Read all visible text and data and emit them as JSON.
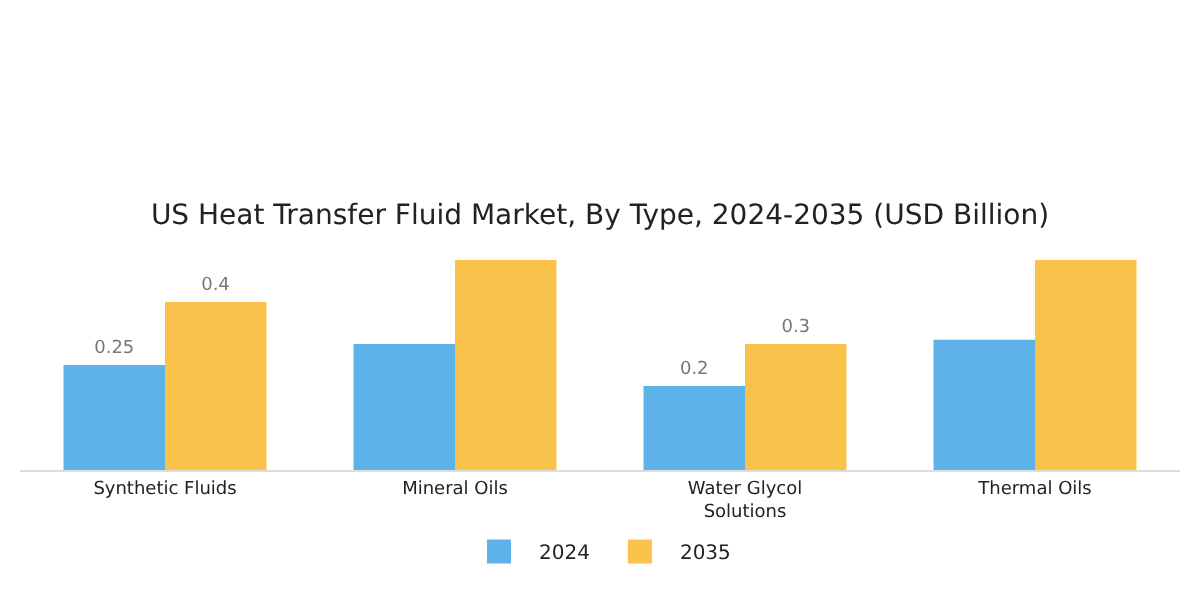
{
  "chart_data": {
    "type": "bar",
    "title": "US Heat Transfer Fluid Market, By Type, 2024-2035 (USD Billion)",
    "categories": [
      "Synthetic Fluids",
      "Mineral Oils",
      "Water Glycol Solutions",
      "Thermal Oils"
    ],
    "series": [
      {
        "name": "2024",
        "color": "#5db3e8",
        "values": [
          0.25,
          0.3,
          0.2,
          0.31
        ],
        "value_labels": [
          "0.25",
          null,
          "0.2",
          null
        ]
      },
      {
        "name": "2035",
        "color": "#f9c34b",
        "values": [
          0.4,
          0.5,
          0.3,
          0.5
        ],
        "value_labels": [
          "0.4",
          null,
          "0.3",
          null
        ]
      }
    ],
    "ylim": [
      0,
      0.5
    ],
    "tick_labels": "x",
    "grid": false,
    "legend": "bottom"
  }
}
